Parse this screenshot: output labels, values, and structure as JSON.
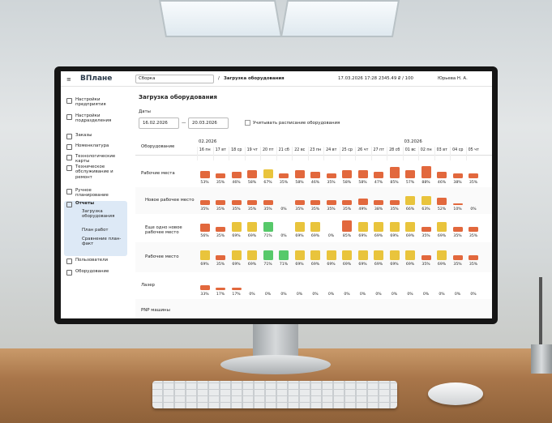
{
  "topbar": {
    "logo": "ВПлане",
    "division": "Сборка",
    "separator": "/",
    "breadcrumb": "Загрузка оборудования",
    "datetime": "17.03.2026 17:28",
    "balance": "2345.49 ₽ / 100",
    "user": "Юрьева Н. А."
  },
  "sidebar": {
    "items": [
      "Настройки предприятия",
      "Настройки подразделения",
      "Заказы",
      "Номенклатура",
      "Технологические карты",
      "Техническое обслуживание и ремонт",
      "Ручное планирование",
      "Отчеты"
    ],
    "report_items": [
      "Загрузка оборудования",
      "План работ",
      "Сравнение план-факт"
    ],
    "bottom_items": [
      "Пользователи",
      "Оборудование"
    ]
  },
  "page": {
    "title": "Загрузка оборудования",
    "dates_label": "Даты",
    "date_from": "16.02.2026",
    "dash": "—",
    "date_to": "20.03.2026",
    "schedule_checkbox": "Учитывать расписание оборудования"
  },
  "table": {
    "column_header": "Оборудование",
    "months": [
      "02.2026",
      "03.2026"
    ],
    "days": [
      "16 пн",
      "17 вт",
      "18 ср",
      "19 чт",
      "20 пт",
      "21 сб",
      "22 вс",
      "23 пн",
      "24 вт",
      "25 ср",
      "26 чт",
      "27 пт",
      "28 сб",
      "01 вс",
      "02 пн",
      "03 вт",
      "04 ср",
      "05 чт"
    ],
    "bar_colors": [
      "#e2683d",
      "#e9c43c",
      "#57c96a"
    ],
    "rows": [
      {
        "name": "Рабочие места",
        "values": [
          53,
          35,
          46,
          58,
          67,
          35,
          58,
          46,
          35,
          58,
          58,
          47,
          85,
          57,
          88,
          46,
          38,
          35
        ],
        "value_labels": [
          "53%",
          "35%",
          "46%",
          "58%",
          "67%",
          "35%",
          "58%",
          "46%",
          "35%",
          "58%",
          "58%",
          "47%",
          "85%",
          "57%",
          "88%",
          "46%",
          "38%",
          "35%"
        ]
      },
      {
        "name": "Новое рабочее место",
        "values": [
          35,
          35,
          35,
          35,
          35,
          0,
          35,
          35,
          35,
          35,
          49,
          38,
          35,
          66,
          63,
          52,
          10,
          0
        ],
        "value_labels": [
          "35%",
          "35%",
          "35%",
          "35%",
          "35%",
          "0%",
          "35%",
          "35%",
          "35%",
          "35%",
          "49%",
          "38%",
          "35%",
          "66%",
          "63%",
          "52%",
          "10%",
          "0%"
        ]
      },
      {
        "name": "Еще одно новое рабочее место",
        "values": [
          56,
          35,
          69,
          69,
          71,
          0,
          69,
          69,
          0,
          85,
          69,
          69,
          69,
          69,
          35,
          69,
          35,
          35
        ],
        "value_labels": [
          "56%",
          "35%",
          "69%",
          "69%",
          "71%",
          "0%",
          "69%",
          "69%",
          "0%",
          "85%",
          "69%",
          "69%",
          "69%",
          "69%",
          "35%",
          "69%",
          "35%",
          "35%"
        ]
      },
      {
        "name": "Рабочее место",
        "values": [
          69,
          35,
          69,
          69,
          71,
          71,
          69,
          69,
          69,
          69,
          69,
          69,
          69,
          69,
          35,
          69,
          35,
          35
        ],
        "value_labels": [
          "69%",
          "35%",
          "69%",
          "69%",
          "71%",
          "71%",
          "69%",
          "69%",
          "69%",
          "69%",
          "69%",
          "69%",
          "69%",
          "69%",
          "35%",
          "69%",
          "35%",
          "35%"
        ]
      },
      {
        "name": "Лазер",
        "values": [
          33,
          17,
          17,
          0,
          0,
          0,
          0,
          0,
          0,
          0,
          0,
          0,
          0,
          0,
          0,
          0,
          0,
          0
        ],
        "value_labels": [
          "33%",
          "17%",
          "17%",
          "0%",
          "0%",
          "0%",
          "0%",
          "0%",
          "0%",
          "0%",
          "0%",
          "0%",
          "0%",
          "0%",
          "0%",
          "0%",
          "0%",
          "0%"
        ]
      },
      {
        "name": "PNP машины"
      }
    ]
  }
}
